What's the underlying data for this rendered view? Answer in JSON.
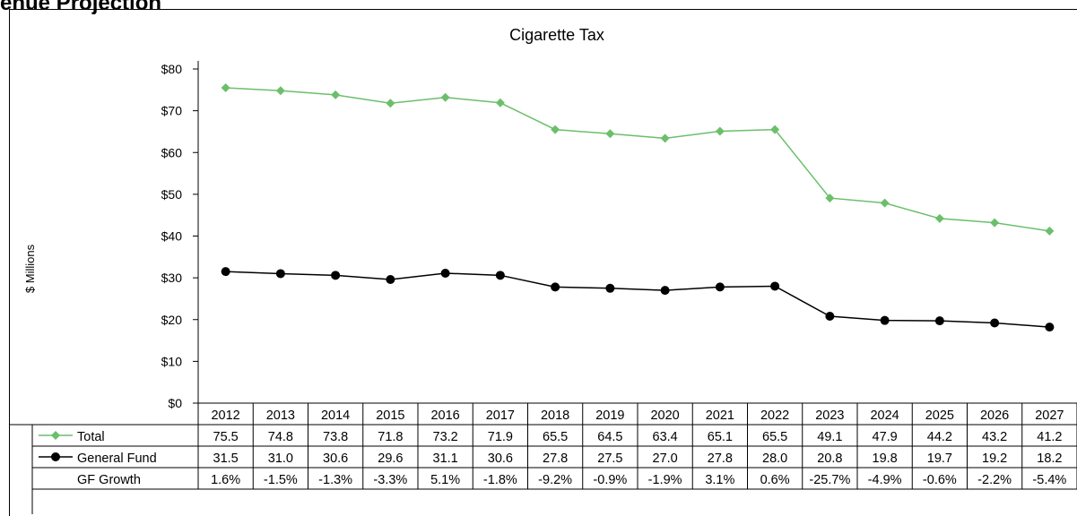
{
  "page": {
    "header_fragment": "enue Projection"
  },
  "chart_data": {
    "type": "line",
    "title": "Cigarette Tax",
    "ylabel": "$ Millions",
    "ylim": [
      0,
      80
    ],
    "yticks": [
      "$0",
      "$10",
      "$20",
      "$30",
      "$40",
      "$50",
      "$60",
      "$70",
      "$80"
    ],
    "grid": false,
    "legend": "data-table",
    "x": [
      "2012",
      "2013",
      "2014",
      "2015",
      "2016",
      "2017",
      "2018",
      "2019",
      "2020",
      "2021",
      "2022",
      "2023",
      "2024",
      "2025",
      "2026",
      "2027"
    ],
    "series": [
      {
        "name": "Total",
        "color": "#6bbf6b",
        "marker": "diamond",
        "values": [
          75.5,
          74.8,
          73.8,
          71.8,
          73.2,
          71.9,
          65.5,
          64.5,
          63.4,
          65.1,
          65.5,
          49.1,
          47.9,
          44.2,
          43.2,
          41.2
        ],
        "labels": [
          "75.5",
          "74.8",
          "73.8",
          "71.8",
          "73.2",
          "71.9",
          "65.5",
          "64.5",
          "63.4",
          "65.1",
          "65.5",
          "49.1",
          "47.9",
          "44.2",
          "43.2",
          "41.2"
        ]
      },
      {
        "name": "General Fund",
        "color": "#000000",
        "marker": "circle",
        "values": [
          31.5,
          31.0,
          30.6,
          29.6,
          31.1,
          30.6,
          27.8,
          27.5,
          27.0,
          27.8,
          28.0,
          20.8,
          19.8,
          19.7,
          19.2,
          18.2
        ],
        "labels": [
          "31.5",
          "31.0",
          "30.6",
          "29.6",
          "31.1",
          "30.6",
          "27.8",
          "27.5",
          "27.0",
          "27.8",
          "28.0",
          "20.8",
          "19.8",
          "19.7",
          "19.2",
          "18.2"
        ]
      }
    ],
    "table_rows": [
      {
        "name": "GF Growth",
        "labels": [
          "1.6%",
          "-1.5%",
          "-1.3%",
          "-3.3%",
          "5.1%",
          "-1.8%",
          "-9.2%",
          "-0.9%",
          "-1.9%",
          "3.1%",
          "0.6%",
          "-25.7%",
          "-4.9%",
          "-0.6%",
          "-2.2%",
          "-5.4%"
        ]
      }
    ]
  }
}
